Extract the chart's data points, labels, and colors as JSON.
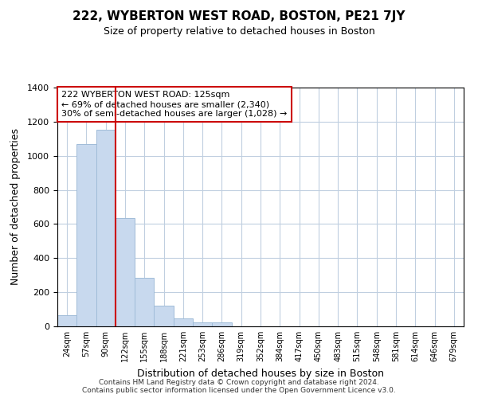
{
  "title": "222, WYBERTON WEST ROAD, BOSTON, PE21 7JY",
  "subtitle": "Size of property relative to detached houses in Boston",
  "xlabel": "Distribution of detached houses by size in Boston",
  "ylabel": "Number of detached properties",
  "bar_labels": [
    "24sqm",
    "57sqm",
    "90sqm",
    "122sqm",
    "155sqm",
    "188sqm",
    "221sqm",
    "253sqm",
    "286sqm",
    "319sqm",
    "352sqm",
    "384sqm",
    "417sqm",
    "450sqm",
    "483sqm",
    "515sqm",
    "548sqm",
    "581sqm",
    "614sqm",
    "646sqm",
    "679sqm"
  ],
  "bar_values": [
    65,
    1070,
    1155,
    635,
    285,
    120,
    48,
    25,
    22,
    0,
    0,
    0,
    0,
    0,
    0,
    0,
    0,
    0,
    0,
    0,
    0
  ],
  "bar_color": "#c8d9ee",
  "bar_edge_color": "#a0bcd8",
  "vline_color": "#cc0000",
  "ylim": [
    0,
    1400
  ],
  "yticks": [
    0,
    200,
    400,
    600,
    800,
    1000,
    1200,
    1400
  ],
  "annotation_title": "222 WYBERTON WEST ROAD: 125sqm",
  "annotation_line1": "← 69% of detached houses are smaller (2,340)",
  "annotation_line2": "30% of semi-detached houses are larger (1,028) →",
  "footer1": "Contains HM Land Registry data © Crown copyright and database right 2024.",
  "footer2": "Contains public sector information licensed under the Open Government Licence v3.0.",
  "background_color": "#ffffff",
  "grid_color": "#c0cfe0"
}
